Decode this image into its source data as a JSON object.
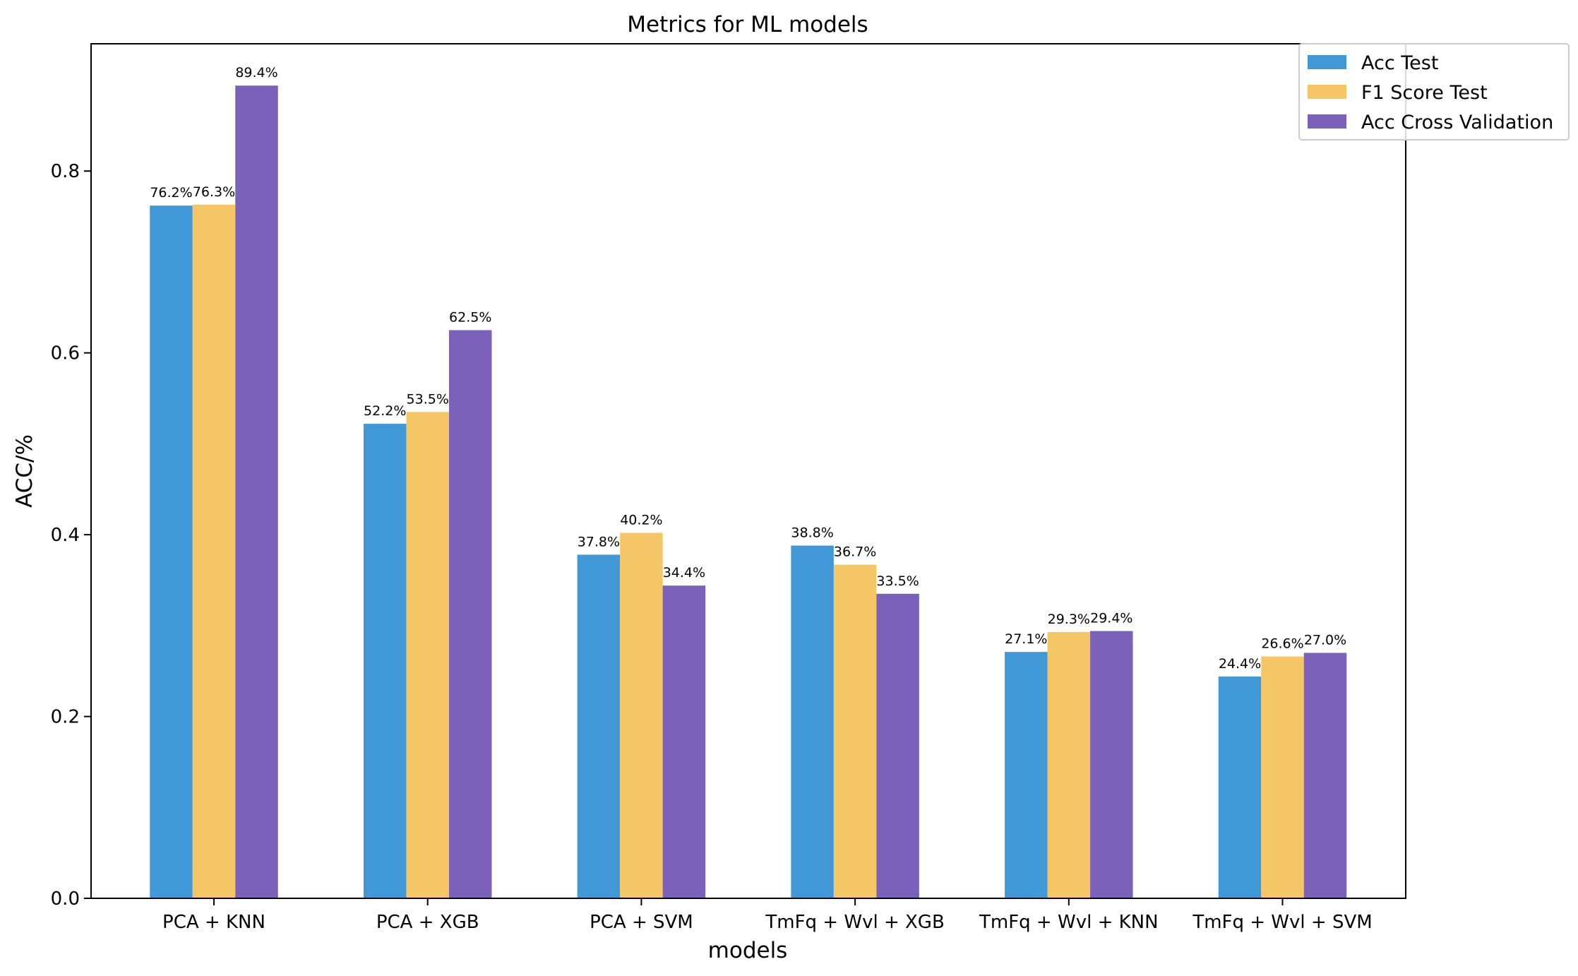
{
  "chart_data": {
    "type": "bar",
    "title": "Metrics for ML models",
    "xlabel": "models",
    "ylabel": "ACC/%",
    "categories": [
      "PCA + KNN",
      "PCA + XGB",
      "PCA + SVM",
      "TmFq + Wvl + XGB",
      "TmFq + Wvl + KNN",
      "TmFq + Wvl + SVM"
    ],
    "series": [
      {
        "name": "Acc Test",
        "color": "#4198d7",
        "values": [
          0.762,
          0.522,
          0.378,
          0.388,
          0.271,
          0.244
        ],
        "labels": [
          "76.2%",
          "52.2%",
          "37.8%",
          "38.8%",
          "27.1%",
          "24.4%"
        ]
      },
      {
        "name": "F1 Score Test",
        "color": "#f5c665",
        "values": [
          0.763,
          0.535,
          0.402,
          0.367,
          0.293,
          0.266
        ],
        "labels": [
          "76.3%",
          "53.5%",
          "40.2%",
          "36.7%",
          "29.3%",
          "26.6%"
        ]
      },
      {
        "name": "Acc Cross Validation",
        "color": "#7b61b9",
        "values": [
          0.894,
          0.625,
          0.344,
          0.335,
          0.294,
          0.27
        ],
        "labels": [
          "89.4%",
          "62.5%",
          "34.4%",
          "33.5%",
          "29.4%",
          "27.0%"
        ]
      }
    ],
    "ylim": [
      0,
      0.94
    ],
    "yticks": [
      0.0,
      0.2,
      0.4,
      0.6,
      0.8
    ],
    "ytick_labels": [
      "0.0",
      "0.2",
      "0.4",
      "0.6",
      "0.8"
    ],
    "grid": false,
    "legend_position": "top-right"
  }
}
